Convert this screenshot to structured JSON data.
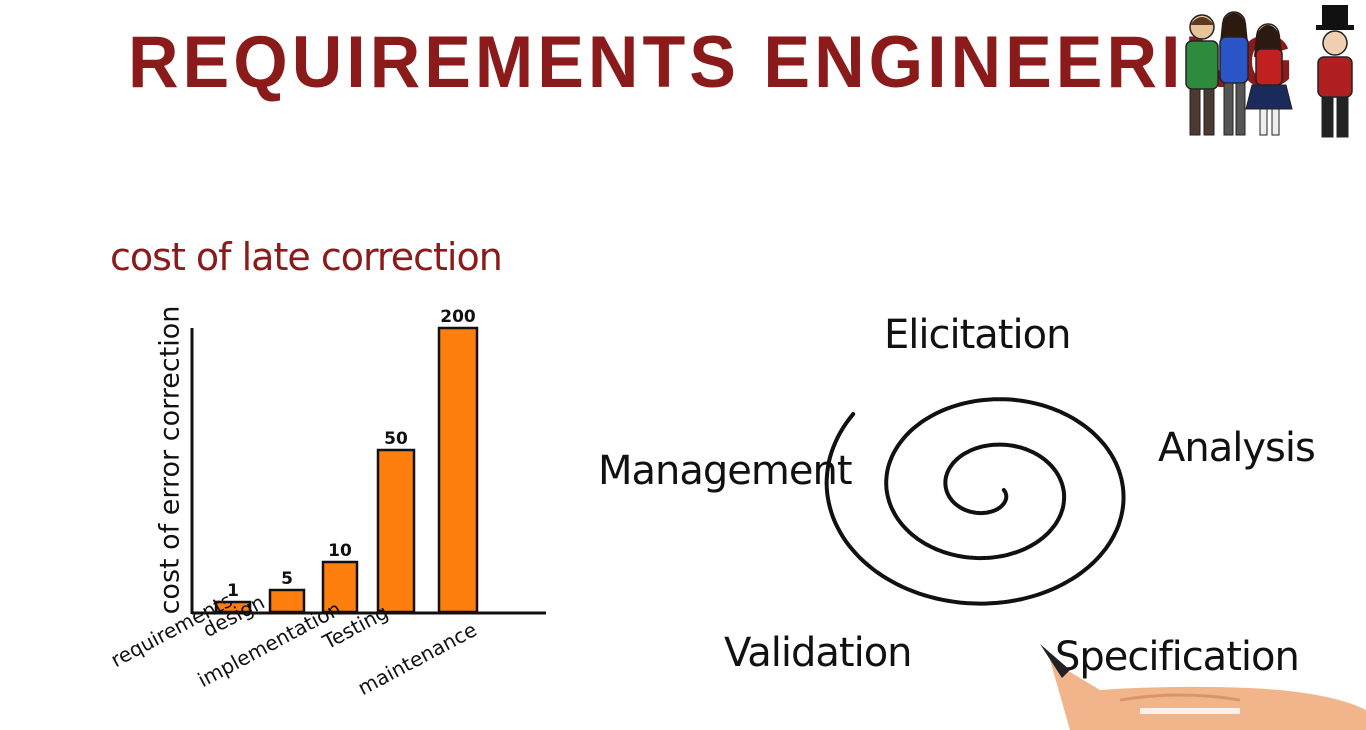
{
  "title": "REQUIREMENTS ENGINEERING",
  "chart_data": {
    "type": "bar",
    "title": "cost of late correction",
    "ylabel": "cost of error correction",
    "xlabel": "",
    "categories": [
      "requirements",
      "design",
      "implementation",
      "Testing",
      "maintenance"
    ],
    "values": [
      1,
      5,
      10,
      50,
      200
    ],
    "value_labels": [
      "1",
      "5",
      "10",
      "50",
      "200"
    ],
    "bar_color": "#ff7f0e",
    "grid": false
  },
  "spiral": {
    "phases": [
      "Elicitation",
      "Analysis",
      "Specification",
      "Validation",
      "Management"
    ]
  },
  "colors": {
    "title": "#8b1a1a",
    "bars": "#ff7f0e",
    "ink": "#111111"
  }
}
